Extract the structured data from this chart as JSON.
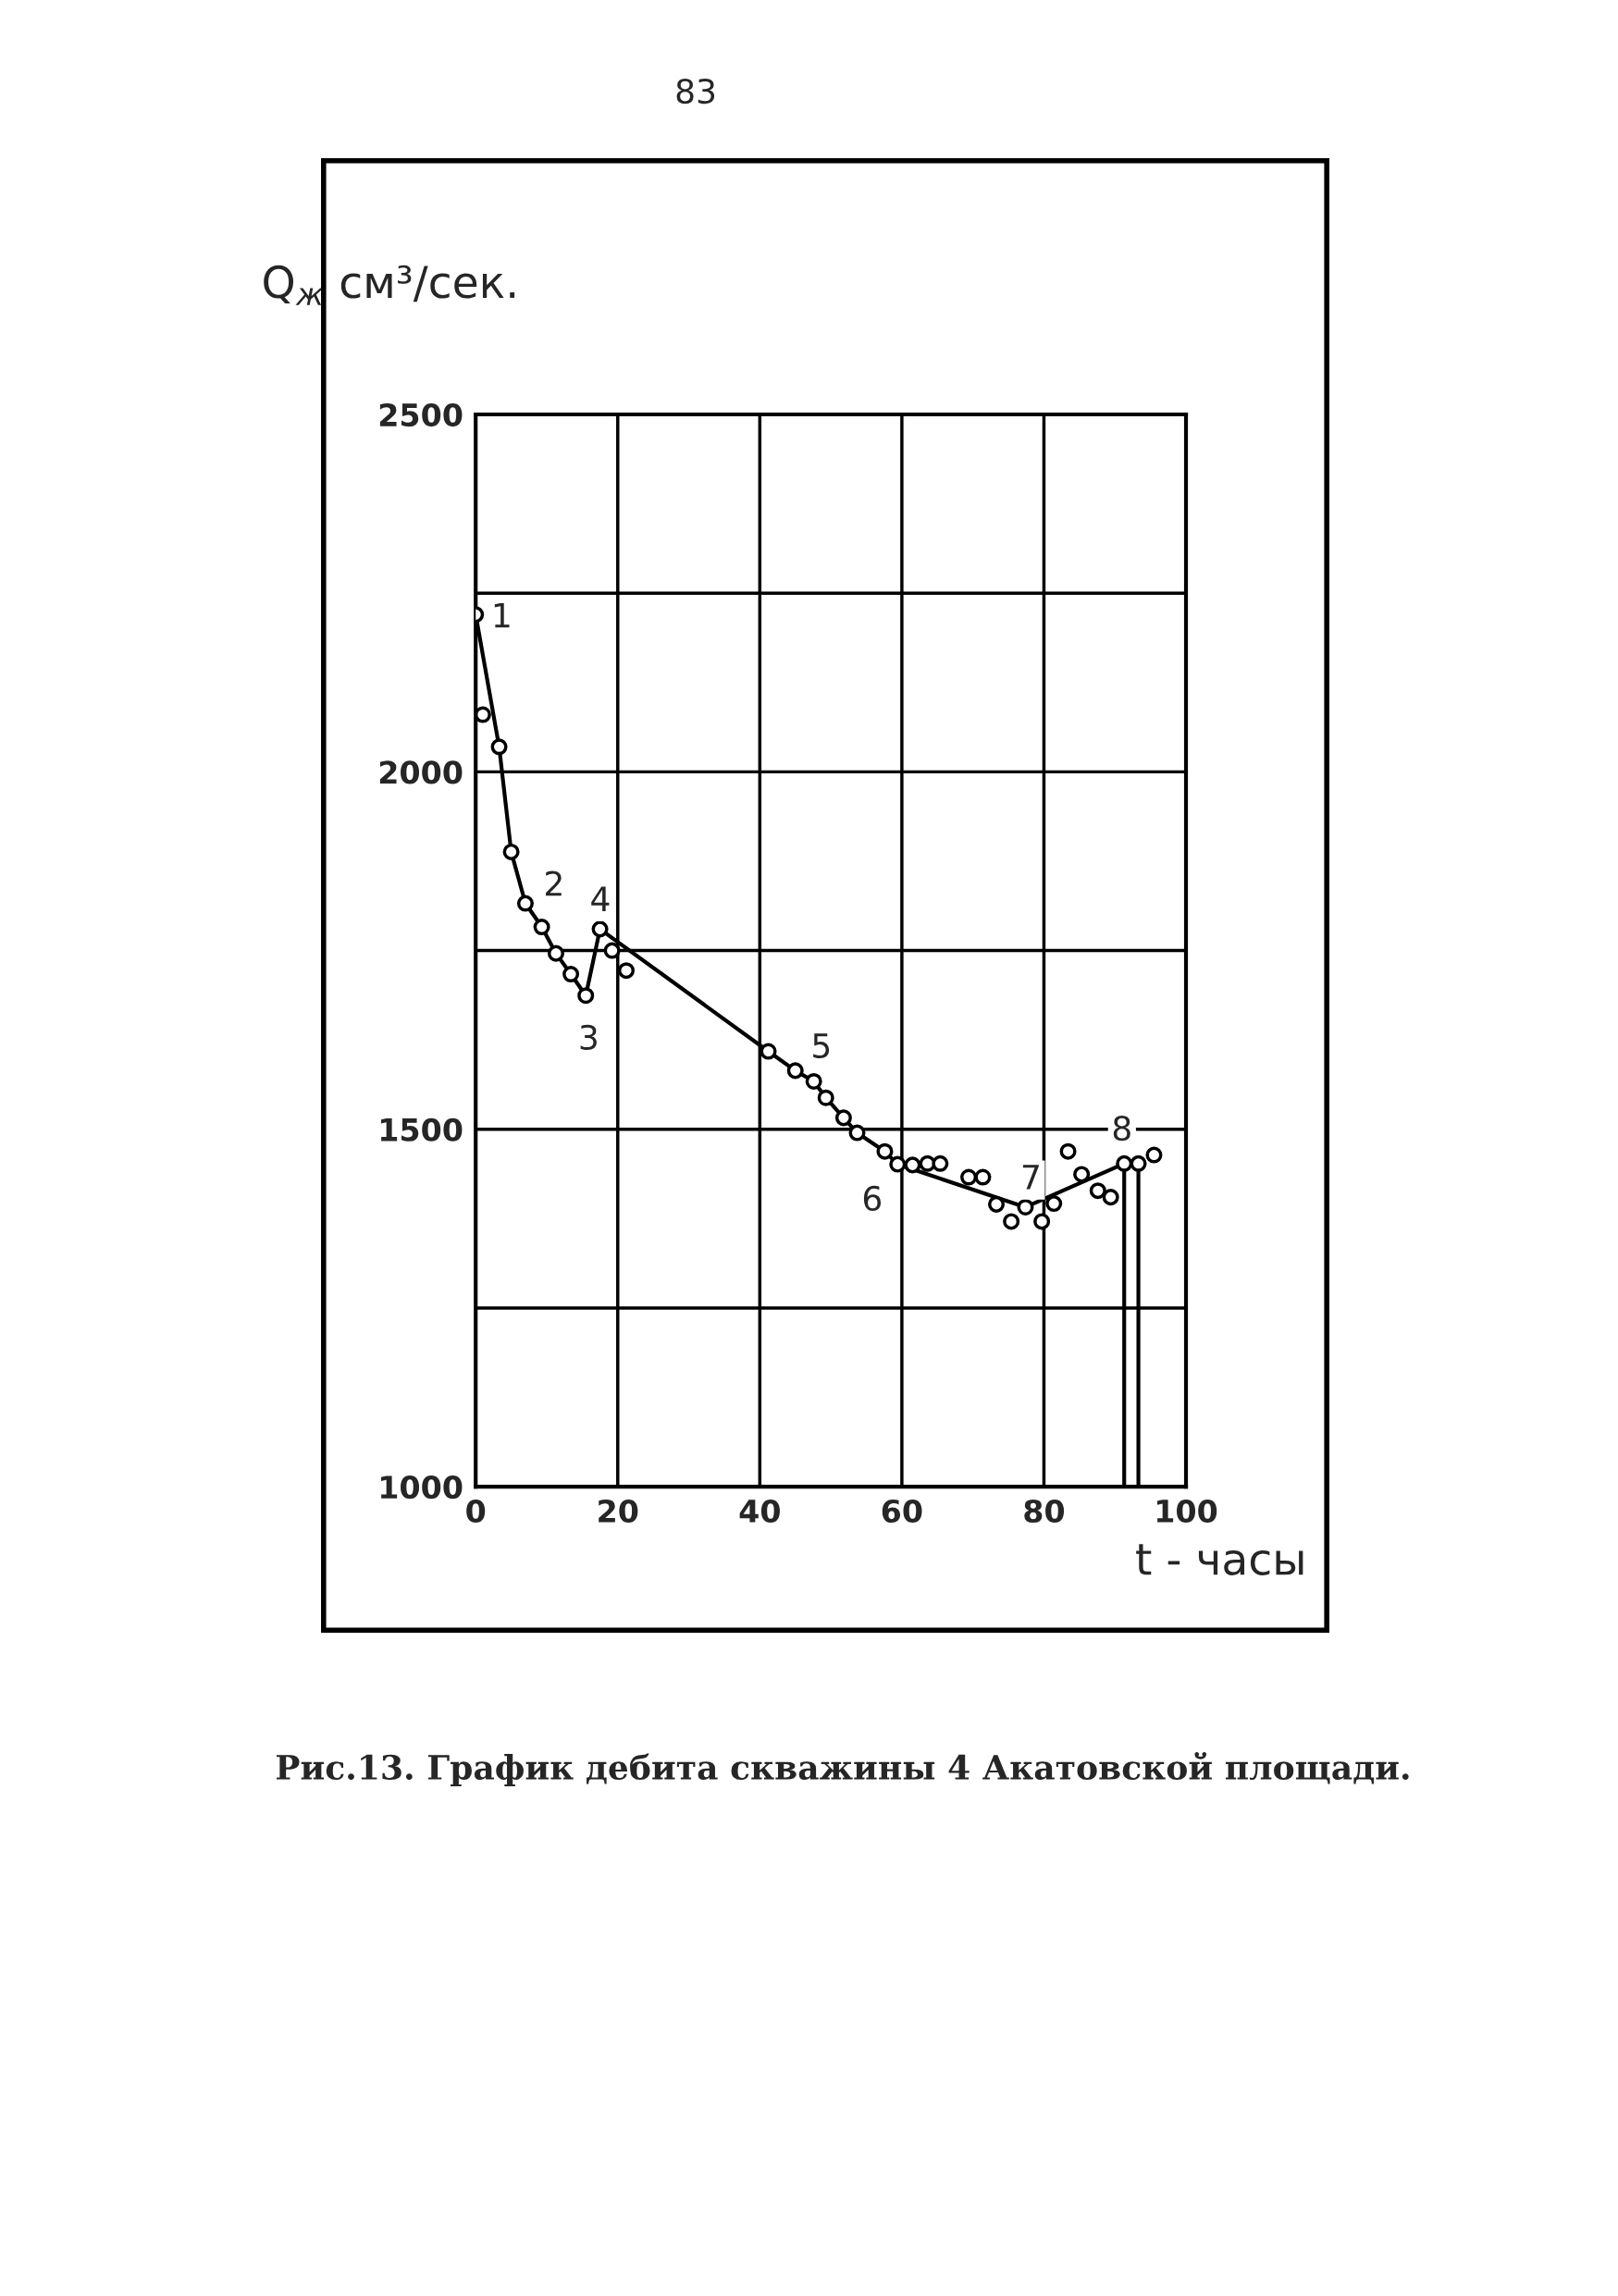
{
  "chart_data": {
    "type": "scatter",
    "title": "Рис.13. График дебита скважины 4 Акатовской площади.",
    "xlabel": "t - часы",
    "ylabel": "Q$_{ж}$ см³/сек.",
    "xlim": [
      0,
      100
    ],
    "xticks": [
      0,
      20,
      40,
      60,
      80,
      100
    ],
    "ylim": [
      1000,
      2500
    ],
    "yticks": [
      1000,
      {
        "value": 1250,
        "label": null
      },
      1500,
      {
        "value": 1750,
        "label": null
      },
      2000,
      {
        "value": 2250,
        "label": null
      },
      2500
    ],
    "grid": true,
    "marker": "circle",
    "series": [
      {
        "type": "line",
        "color": "#000000",
        "marker": "none",
        "line_style": "solid",
        "x": [
          0,
          3.3,
          5,
          7,
          9.3,
          11.3,
          13.4,
          15.5,
          17.5,
          41.2,
          45,
          47.6,
          49.3,
          51.8,
          53.7,
          57.6,
          59.4,
          77.4,
          91.3
        ],
        "values": [
          2220,
          2035,
          1888,
          1816,
          1783,
          1746,
          1717,
          1687,
          1780,
          1609,
          1582,
          1567,
          1544,
          1516,
          1495,
          1469,
          1451,
          1391,
          1452
        ]
      },
      {
        "type": "line",
        "color": "#000000",
        "marker": "none",
        "line_style": "solid",
        "x": [
          91.3,
          91.3
        ],
        "values": [
          1000,
          1452
        ]
      },
      {
        "type": "line",
        "color": "#000000",
        "marker": "none",
        "line_style": "solid",
        "x": [
          93.3,
          93.3
        ],
        "values": [
          1000,
          1452
        ]
      },
      {
        "color": "#000000",
        "x": [
          0,
          1,
          3.3,
          5,
          7,
          9.3,
          11.3,
          13.4,
          15.5,
          17.5,
          19.2,
          21.2,
          41.2,
          45,
          47.6,
          49.3,
          51.8,
          53.7,
          57.6,
          59.4,
          61.5,
          63.6,
          65.4,
          69.4,
          71.4,
          73.3,
          75.4,
          77.4,
          79.7,
          81.4,
          83.4,
          85.3,
          87.6,
          89.4,
          91.3,
          93.3,
          95.5
        ],
        "values": [
          2220,
          2080,
          2035,
          1888,
          1816,
          1783,
          1746,
          1717,
          1687,
          1780,
          1750,
          1722,
          1609,
          1582,
          1567,
          1544,
          1516,
          1495,
          1469,
          1451,
          1450,
          1452,
          1452,
          1433,
          1433,
          1395,
          1371,
          1391,
          1371,
          1396,
          1469,
          1437,
          1414,
          1405,
          1452,
          1452,
          1464
        ]
      }
    ],
    "annotations": [
      "83",
      {
        "text": "1",
        "x": 0,
        "y": 2220
      },
      {
        "text": "2",
        "x": 7,
        "y": 1816
      },
      {
        "text": "3",
        "x": 15.5,
        "y": 1687
      },
      {
        "text": "4",
        "x": 17.5,
        "y": 1780
      },
      {
        "text": "5",
        "x": 45,
        "y": 1582
      },
      {
        "text": "6",
        "x": 59.4,
        "y": 1451
      },
      {
        "text": "7",
        "x": 77.4,
        "y": 1391
      },
      {
        "text": "8",
        "x": 91.3,
        "y": 1452
      }
    ]
  }
}
